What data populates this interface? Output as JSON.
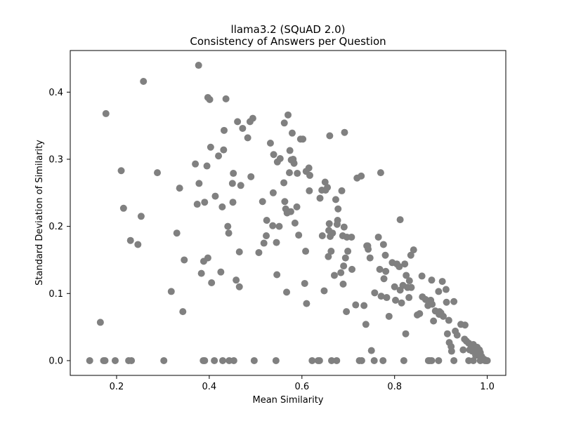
{
  "chart_data": {
    "type": "scatter",
    "title": "llama3.2 (SQuAD 2.0)",
    "subtitle": "Consistency of Answers per Question",
    "xlabel": "Mean Similarity",
    "ylabel": "Standard Deviation of Similarity",
    "xlim": [
      0.1,
      1.04
    ],
    "ylim": [
      -0.022,
      0.462
    ],
    "xticks": [
      0.2,
      0.4,
      0.6,
      0.8,
      1.0
    ],
    "xtick_labels": [
      "0.2",
      "0.4",
      "0.6",
      "0.8",
      "1.0"
    ],
    "yticks": [
      0.0,
      0.1,
      0.2,
      0.3,
      0.4
    ],
    "ytick_labels": [
      "0.0",
      "0.1",
      "0.2",
      "0.3",
      "0.4"
    ],
    "grid": false,
    "marker_color": "#808080",
    "points": [
      [
        0.142,
        0.0
      ],
      [
        0.172,
        0.0
      ],
      [
        0.175,
        0.0
      ],
      [
        0.197,
        0.0
      ],
      [
        0.226,
        0.0
      ],
      [
        0.232,
        0.0
      ],
      [
        0.302,
        0.0
      ],
      [
        0.387,
        0.0
      ],
      [
        0.39,
        0.0
      ],
      [
        0.411,
        0.0
      ],
      [
        0.429,
        0.0
      ],
      [
        0.443,
        0.0
      ],
      [
        0.453,
        0.0
      ],
      [
        0.497,
        0.0
      ],
      [
        0.544,
        0.0
      ],
      [
        0.622,
        0.0
      ],
      [
        0.635,
        0.0
      ],
      [
        0.638,
        0.0
      ],
      [
        0.664,
        0.0
      ],
      [
        0.675,
        0.0
      ],
      [
        0.724,
        0.0
      ],
      [
        0.729,
        0.0
      ],
      [
        0.756,
        0.0
      ],
      [
        0.775,
        0.0
      ],
      [
        0.82,
        0.0
      ],
      [
        0.873,
        0.0
      ],
      [
        0.88,
        0.0
      ],
      [
        0.895,
        0.0
      ],
      [
        0.928,
        0.0
      ],
      [
        0.96,
        0.0
      ],
      [
        0.97,
        0.0
      ],
      [
        0.985,
        0.0
      ],
      [
        0.995,
        0.0
      ],
      [
        1.0,
        0.0
      ],
      [
        0.165,
        0.057
      ],
      [
        0.177,
        0.368
      ],
      [
        0.21,
        0.283
      ],
      [
        0.215,
        0.227
      ],
      [
        0.23,
        0.179
      ],
      [
        0.246,
        0.173
      ],
      [
        0.253,
        0.215
      ],
      [
        0.258,
        0.416
      ],
      [
        0.288,
        0.28
      ],
      [
        0.318,
        0.103
      ],
      [
        0.33,
        0.19
      ],
      [
        0.336,
        0.257
      ],
      [
        0.343,
        0.073
      ],
      [
        0.346,
        0.15
      ],
      [
        0.37,
        0.293
      ],
      [
        0.374,
        0.233
      ],
      [
        0.377,
        0.44
      ],
      [
        0.378,
        0.264
      ],
      [
        0.383,
        0.13
      ],
      [
        0.388,
        0.148
      ],
      [
        0.39,
        0.236
      ],
      [
        0.395,
        0.29
      ],
      [
        0.397,
        0.392
      ],
      [
        0.397,
        0.153
      ],
      [
        0.401,
        0.389
      ],
      [
        0.403,
        0.318
      ],
      [
        0.405,
        0.116
      ],
      [
        0.413,
        0.245
      ],
      [
        0.42,
        0.305
      ],
      [
        0.425,
        0.132
      ],
      [
        0.428,
        0.229
      ],
      [
        0.431,
        0.314
      ],
      [
        0.432,
        0.343
      ],
      [
        0.436,
        0.39
      ],
      [
        0.44,
        0.2
      ],
      [
        0.442,
        0.19
      ],
      [
        0.45,
        0.264
      ],
      [
        0.451,
        0.236
      ],
      [
        0.452,
        0.279
      ],
      [
        0.458,
        0.12
      ],
      [
        0.461,
        0.356
      ],
      [
        0.465,
        0.11
      ],
      [
        0.465,
        0.162
      ],
      [
        0.468,
        0.261
      ],
      [
        0.472,
        0.346
      ],
      [
        0.483,
        0.332
      ],
      [
        0.488,
        0.356
      ],
      [
        0.49,
        0.274
      ],
      [
        0.494,
        0.361
      ],
      [
        0.507,
        0.161
      ],
      [
        0.515,
        0.237
      ],
      [
        0.518,
        0.175
      ],
      [
        0.523,
        0.186
      ],
      [
        0.524,
        0.209
      ],
      [
        0.532,
        0.324
      ],
      [
        0.537,
        0.201
      ],
      [
        0.538,
        0.25
      ],
      [
        0.539,
        0.307
      ],
      [
        0.545,
        0.176
      ],
      [
        0.546,
        0.128
      ],
      [
        0.547,
        0.296
      ],
      [
        0.551,
        0.2
      ],
      [
        0.553,
        0.301
      ],
      [
        0.561,
        0.265
      ],
      [
        0.562,
        0.354
      ],
      [
        0.563,
        0.237
      ],
      [
        0.565,
        0.226
      ],
      [
        0.567,
        0.102
      ],
      [
        0.568,
        0.22
      ],
      [
        0.57,
        0.366
      ],
      [
        0.573,
        0.28
      ],
      [
        0.574,
        0.313
      ],
      [
        0.576,
        0.222
      ],
      [
        0.577,
        0.299
      ],
      [
        0.579,
        0.339
      ],
      [
        0.581,
        0.3
      ],
      [
        0.583,
        0.294
      ],
      [
        0.585,
        0.205
      ],
      [
        0.589,
        0.229
      ],
      [
        0.59,
        0.279
      ],
      [
        0.593,
        0.187
      ],
      [
        0.597,
        0.33
      ],
      [
        0.602,
        0.33
      ],
      [
        0.606,
        0.115
      ],
      [
        0.608,
        0.163
      ],
      [
        0.609,
        0.282
      ],
      [
        0.61,
        0.085
      ],
      [
        0.615,
        0.287
      ],
      [
        0.616,
        0.253
      ],
      [
        0.617,
        0.276
      ],
      [
        0.639,
        0.242
      ],
      [
        0.643,
        0.254
      ],
      [
        0.644,
        0.186
      ],
      [
        0.648,
        0.104
      ],
      [
        0.65,
        0.266
      ],
      [
        0.651,
        0.254
      ],
      [
        0.655,
        0.258
      ],
      [
        0.657,
        0.155
      ],
      [
        0.658,
        0.194
      ],
      [
        0.659,
        0.204
      ],
      [
        0.66,
        0.335
      ],
      [
        0.661,
        0.185
      ],
      [
        0.663,
        0.163
      ],
      [
        0.666,
        0.19
      ],
      [
        0.67,
        0.127
      ],
      [
        0.673,
        0.24
      ],
      [
        0.676,
        0.203
      ],
      [
        0.677,
        0.209
      ],
      [
        0.678,
        0.226
      ],
      [
        0.684,
        0.131
      ],
      [
        0.686,
        0.253
      ],
      [
        0.688,
        0.186
      ],
      [
        0.689,
        0.114
      ],
      [
        0.69,
        0.141
      ],
      [
        0.691,
        0.199
      ],
      [
        0.692,
        0.34
      ],
      [
        0.694,
        0.153
      ],
      [
        0.696,
        0.073
      ],
      [
        0.697,
        0.184
      ],
      [
        0.699,
        0.163
      ],
      [
        0.707,
        0.184
      ],
      [
        0.708,
        0.136
      ],
      [
        0.716,
        0.083
      ],
      [
        0.719,
        0.272
      ],
      [
        0.728,
        0.275
      ],
      [
        0.734,
        0.082
      ],
      [
        0.738,
        0.054
      ],
      [
        0.74,
        0.171
      ],
      [
        0.742,
        0.171
      ],
      [
        0.743,
        0.166
      ],
      [
        0.747,
        0.153
      ],
      [
        0.75,
        0.015
      ],
      [
        0.757,
        0.101
      ],
      [
        0.765,
        0.184
      ],
      [
        0.768,
        0.136
      ],
      [
        0.77,
        0.28
      ],
      [
        0.771,
        0.096
      ],
      [
        0.776,
        0.173
      ],
      [
        0.777,
        0.122
      ],
      [
        0.78,
        0.157
      ],
      [
        0.781,
        0.133
      ],
      [
        0.783,
        0.094
      ],
      [
        0.788,
        0.066
      ],
      [
        0.795,
        0.146
      ],
      [
        0.8,
        0.11
      ],
      [
        0.802,
        0.09
      ],
      [
        0.805,
        0.144
      ],
      [
        0.81,
        0.14
      ],
      [
        0.812,
        0.21
      ],
      [
        0.812,
        0.105
      ],
      [
        0.815,
        0.086
      ],
      [
        0.818,
        0.112
      ],
      [
        0.822,
        0.144
      ],
      [
        0.824,
        0.04
      ],
      [
        0.825,
        0.127
      ],
      [
        0.828,
        0.109
      ],
      [
        0.831,
        0.094
      ],
      [
        0.832,
        0.119
      ],
      [
        0.835,
        0.157
      ],
      [
        0.836,
        0.109
      ],
      [
        0.841,
        0.165
      ],
      [
        0.849,
        0.068
      ],
      [
        0.854,
        0.07
      ],
      [
        0.859,
        0.126
      ],
      [
        0.86,
        0.095
      ],
      [
        0.867,
        0.091
      ],
      [
        0.872,
        0.082
      ],
      [
        0.876,
        0.0
      ],
      [
        0.878,
        0.09
      ],
      [
        0.88,
        0.12
      ],
      [
        0.881,
        0.084
      ],
      [
        0.884,
        0.059
      ],
      [
        0.888,
        0.074
      ],
      [
        0.895,
        0.103
      ],
      [
        0.896,
        0.069
      ],
      [
        0.897,
        0.073
      ],
      [
        0.9,
        0.071
      ],
      [
        0.903,
        0.118
      ],
      [
        0.905,
        0.066
      ],
      [
        0.911,
        0.106
      ],
      [
        0.912,
        0.087
      ],
      [
        0.914,
        0.04
      ],
      [
        0.917,
        0.06
      ],
      [
        0.918,
        0.027
      ],
      [
        0.922,
        0.021
      ],
      [
        0.923,
        0.014
      ],
      [
        0.928,
        0.088
      ],
      [
        0.931,
        0.044
      ],
      [
        0.935,
        0.038
      ],
      [
        0.943,
        0.054
      ],
      [
        0.948,
        0.016
      ],
      [
        0.951,
        0.032
      ],
      [
        0.952,
        0.053
      ],
      [
        0.955,
        0.029
      ],
      [
        0.96,
        0.026
      ],
      [
        0.962,
        0.016
      ],
      [
        0.965,
        0.019
      ],
      [
        0.968,
        0.014
      ],
      [
        0.97,
        0.024
      ],
      [
        0.972,
        0.013
      ],
      [
        0.975,
        0.008
      ],
      [
        0.978,
        0.02
      ],
      [
        0.98,
        0.008
      ],
      [
        0.983,
        0.016
      ],
      [
        0.985,
        0.012
      ],
      [
        0.988,
        0.006
      ],
      [
        0.99,
        0.003
      ],
      [
        0.993,
        0.002
      ],
      [
        0.995,
        0.001
      ],
      [
        0.998,
        0.0
      ]
    ]
  }
}
